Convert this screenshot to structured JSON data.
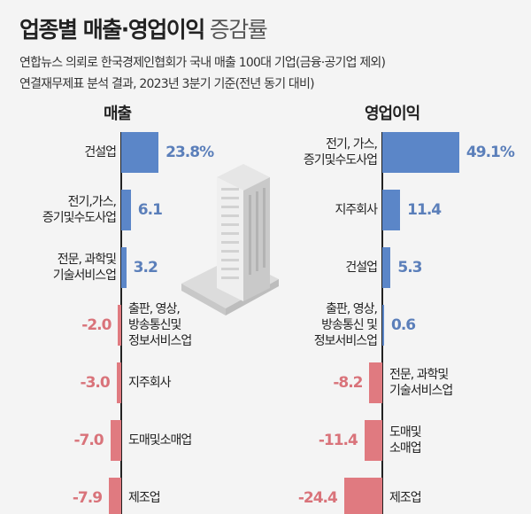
{
  "header": {
    "title_bold": "업종별 매출·영업이익",
    "title_light": "증감률",
    "description_line1": "연합뉴스 의뢰로 한국경제인협회가 국내 매출 100대 기업(금융·공기업 제외)",
    "description_line2": "연결재무제표 분석 결과, 2023년 3분기 기준(전년 동기 대비)"
  },
  "colors": {
    "positive": "#5b86c8",
    "negative": "#e07a80",
    "positive_text": "#5b7fba",
    "negative_text": "#d9737a"
  },
  "chart_data": [
    {
      "type": "bar",
      "orientation": "horizontal",
      "title": "매출",
      "unit": "%",
      "categories": [
        "건설업",
        "전기, 가스, 증기 및 수도사업",
        "전문, 과학 및 기술서비스업",
        "출판, 영상, 방송통신 및 정보서비스업",
        "지주회사",
        "도매 및 소매업",
        "제조업"
      ],
      "category_lines": [
        [
          "건설업"
        ],
        [
          "전기,가스,",
          "증기및수도사업"
        ],
        [
          "전문, 과학및",
          "기술서비스업"
        ],
        [
          "출판, 영상,",
          "방송통신및",
          "정보서비스업"
        ],
        [
          "지주회사"
        ],
        [
          "도매및소매업"
        ],
        [
          "제조업"
        ]
      ],
      "values": [
        23.8,
        6.1,
        3.2,
        -2.0,
        -3.0,
        -7.0,
        -7.9
      ],
      "value_labels": [
        "23.8%",
        "6.1",
        "3.2",
        "-2.0",
        "-3.0",
        "-7.0",
        "-7.9"
      ]
    },
    {
      "type": "bar",
      "orientation": "horizontal",
      "title": "영업이익",
      "unit": "%",
      "categories": [
        "전기, 가스, 증기 및 수도사업",
        "지주회사",
        "건설업",
        "출판, 영상, 방송통신 및 정보서비스업",
        "전문, 과학 및 기술서비스업",
        "도매 및 소매업",
        "제조업"
      ],
      "category_lines": [
        [
          "전기, 가스,",
          "증기및수도사업"
        ],
        [
          "지주회사"
        ],
        [
          "건설업"
        ],
        [
          "출판, 영상,",
          "방송통신 및",
          "정보서비스업"
        ],
        [
          "전문, 과학및",
          "기술서비스업"
        ],
        [
          "도매및",
          "소매업"
        ],
        [
          "제조업"
        ]
      ],
      "values": [
        49.1,
        11.4,
        5.3,
        0.6,
        -8.2,
        -11.4,
        -24.4
      ],
      "value_labels": [
        "49.1%",
        "11.4",
        "5.3",
        "0.6",
        "-8.2",
        "-11.4",
        "-24.4"
      ]
    }
  ]
}
